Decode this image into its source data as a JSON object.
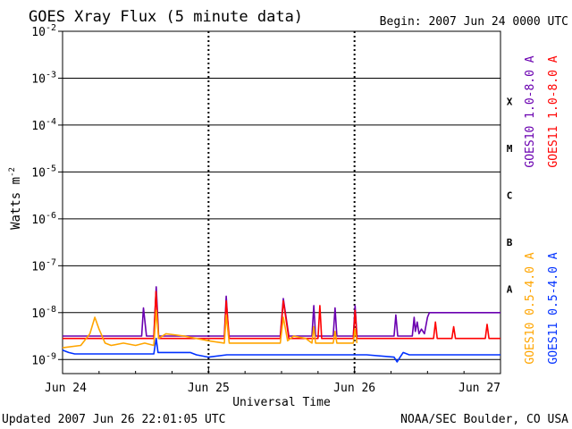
{
  "chart_data": {
    "type": "line",
    "title": "GOES Xray Flux (5 minute data)",
    "begin_label": "Begin:  2007 Jun 24 0000 UTC",
    "xlabel": "Universal Time",
    "ylabel": "Watts m",
    "ylabel_exponent": "-2",
    "updated_label": "Updated 2007 Jun 26 22:01:05 UTC",
    "credit": "NOAA/SEC Boulder, CO USA",
    "y_scale": "log",
    "ylim": [
      -9.3,
      -2
    ],
    "xlim": [
      0,
      72
    ],
    "x_unit": "hours since 2007 Jun 24 0000 UTC",
    "x_ticks": [
      {
        "x": 0,
        "label": "Jun 24"
      },
      {
        "x": 24,
        "label": "Jun 25"
      },
      {
        "x": 48,
        "label": "Jun 26"
      },
      {
        "x": 72,
        "label": "Jun 27"
      }
    ],
    "y_ticks": [
      {
        "exp": -2,
        "base": "10",
        "sup": "-2"
      },
      {
        "exp": -3,
        "base": "10",
        "sup": "-3"
      },
      {
        "exp": -4,
        "base": "10",
        "sup": "-4"
      },
      {
        "exp": -5,
        "base": "10",
        "sup": "-5"
      },
      {
        "exp": -6,
        "base": "10",
        "sup": "-6"
      },
      {
        "exp": -7,
        "base": "10",
        "sup": "-7"
      },
      {
        "exp": -8,
        "base": "10",
        "sup": "-8"
      },
      {
        "exp": -9,
        "base": "10",
        "sup": "-9"
      }
    ],
    "class_labels": [
      {
        "label": "X",
        "center_exp": -3.5
      },
      {
        "label": "M",
        "center_exp": -4.5
      },
      {
        "label": "C",
        "center_exp": -5.5
      },
      {
        "label": "B",
        "center_exp": -6.5
      },
      {
        "label": "A",
        "center_exp": -7.5
      }
    ],
    "series": [
      {
        "name": "GOES10 1.0-8.0 A",
        "color": "#6a00b0",
        "points": [
          [
            0,
            -8.5
          ],
          [
            13,
            -8.5
          ],
          [
            13.3,
            -7.9
          ],
          [
            13.8,
            -8.5
          ],
          [
            15,
            -8.5
          ],
          [
            15.4,
            -7.45
          ],
          [
            15.8,
            -8.5
          ],
          [
            26.6,
            -8.5
          ],
          [
            26.9,
            -7.65
          ],
          [
            27.3,
            -8.5
          ],
          [
            35.8,
            -8.5
          ],
          [
            36.3,
            -7.7
          ],
          [
            37.2,
            -8.5
          ],
          [
            41,
            -8.5
          ],
          [
            41.3,
            -7.85
          ],
          [
            41.6,
            -8.5
          ],
          [
            44.5,
            -8.5
          ],
          [
            44.8,
            -7.9
          ],
          [
            45.1,
            -8.5
          ],
          [
            47.8,
            -8.5
          ],
          [
            48.1,
            -7.85
          ],
          [
            48.4,
            -8.5
          ],
          [
            54.5,
            -8.5
          ],
          [
            54.8,
            -8.05
          ],
          [
            55.1,
            -8.5
          ],
          [
            57.5,
            -8.5
          ],
          [
            57.8,
            -8.1
          ],
          [
            58,
            -8.4
          ],
          [
            58.3,
            -8.2
          ],
          [
            58.6,
            -8.45
          ],
          [
            59,
            -8.35
          ],
          [
            59.5,
            -8.45
          ],
          [
            60,
            -8.1
          ],
          [
            60.3,
            -8.0
          ],
          [
            72,
            -8.0
          ]
        ]
      },
      {
        "name": "GOES11 1.0-8.0 A",
        "color": "#ff0000",
        "points": [
          [
            0,
            -8.55
          ],
          [
            15,
            -8.55
          ],
          [
            15.35,
            -7.55
          ],
          [
            15.8,
            -8.55
          ],
          [
            26.6,
            -8.55
          ],
          [
            26.9,
            -7.75
          ],
          [
            27.4,
            -8.55
          ],
          [
            35.8,
            -8.55
          ],
          [
            36.3,
            -7.75
          ],
          [
            37.2,
            -8.55
          ],
          [
            42,
            -8.55
          ],
          [
            42.3,
            -7.85
          ],
          [
            42.6,
            -8.55
          ],
          [
            47.8,
            -8.55
          ],
          [
            48.1,
            -7.95
          ],
          [
            48.4,
            -8.55
          ],
          [
            61,
            -8.55
          ],
          [
            61.3,
            -8.2
          ],
          [
            61.6,
            -8.55
          ],
          [
            64,
            -8.55
          ],
          [
            64.3,
            -8.3
          ],
          [
            64.6,
            -8.55
          ],
          [
            69.5,
            -8.55
          ],
          [
            69.8,
            -8.25
          ],
          [
            70.1,
            -8.55
          ],
          [
            72,
            -8.55
          ]
        ]
      },
      {
        "name": "GOES10 0.5-4.0 A",
        "color": "#ffa500",
        "points": [
          [
            0,
            -8.75
          ],
          [
            3,
            -8.7
          ],
          [
            4.5,
            -8.45
          ],
          [
            5.3,
            -8.1
          ],
          [
            6,
            -8.35
          ],
          [
            7,
            -8.65
          ],
          [
            8,
            -8.7
          ],
          [
            10,
            -8.65
          ],
          [
            12,
            -8.7
          ],
          [
            13.5,
            -8.65
          ],
          [
            15,
            -8.7
          ],
          [
            15.4,
            -7.95
          ],
          [
            15.8,
            -8.55
          ],
          [
            17,
            -8.45
          ],
          [
            20,
            -8.5
          ],
          [
            22,
            -8.55
          ],
          [
            24,
            -8.6
          ],
          [
            26.6,
            -8.65
          ],
          [
            26.9,
            -8.05
          ],
          [
            27.4,
            -8.65
          ],
          [
            30,
            -8.65
          ],
          [
            35.8,
            -8.65
          ],
          [
            36.3,
            -8.1
          ],
          [
            37,
            -8.6
          ],
          [
            38,
            -8.5
          ],
          [
            40,
            -8.55
          ],
          [
            41,
            -8.65
          ],
          [
            41.3,
            -8.3
          ],
          [
            41.6,
            -8.65
          ],
          [
            44.5,
            -8.65
          ],
          [
            44.8,
            -8.4
          ],
          [
            45.1,
            -8.65
          ],
          [
            47.8,
            -8.65
          ],
          [
            48.1,
            -8.35
          ],
          [
            48.4,
            -8.65
          ]
        ]
      },
      {
        "name": "GOES11 0.5-4.0 A",
        "color": "#0030ff",
        "points": [
          [
            0,
            -8.8
          ],
          [
            1,
            -8.85
          ],
          [
            2,
            -8.88
          ],
          [
            10,
            -8.88
          ],
          [
            15,
            -8.88
          ],
          [
            15.4,
            -8.55
          ],
          [
            15.7,
            -8.85
          ],
          [
            19,
            -8.85
          ],
          [
            21,
            -8.85
          ],
          [
            22,
            -8.9
          ],
          [
            24,
            -8.95
          ],
          [
            27,
            -8.9
          ],
          [
            36,
            -8.9
          ],
          [
            50,
            -8.9
          ],
          [
            54.5,
            -8.95
          ],
          [
            55,
            -9.05
          ],
          [
            55.5,
            -8.95
          ],
          [
            56,
            -8.85
          ],
          [
            57,
            -8.9
          ],
          [
            72,
            -8.9
          ]
        ]
      }
    ]
  }
}
